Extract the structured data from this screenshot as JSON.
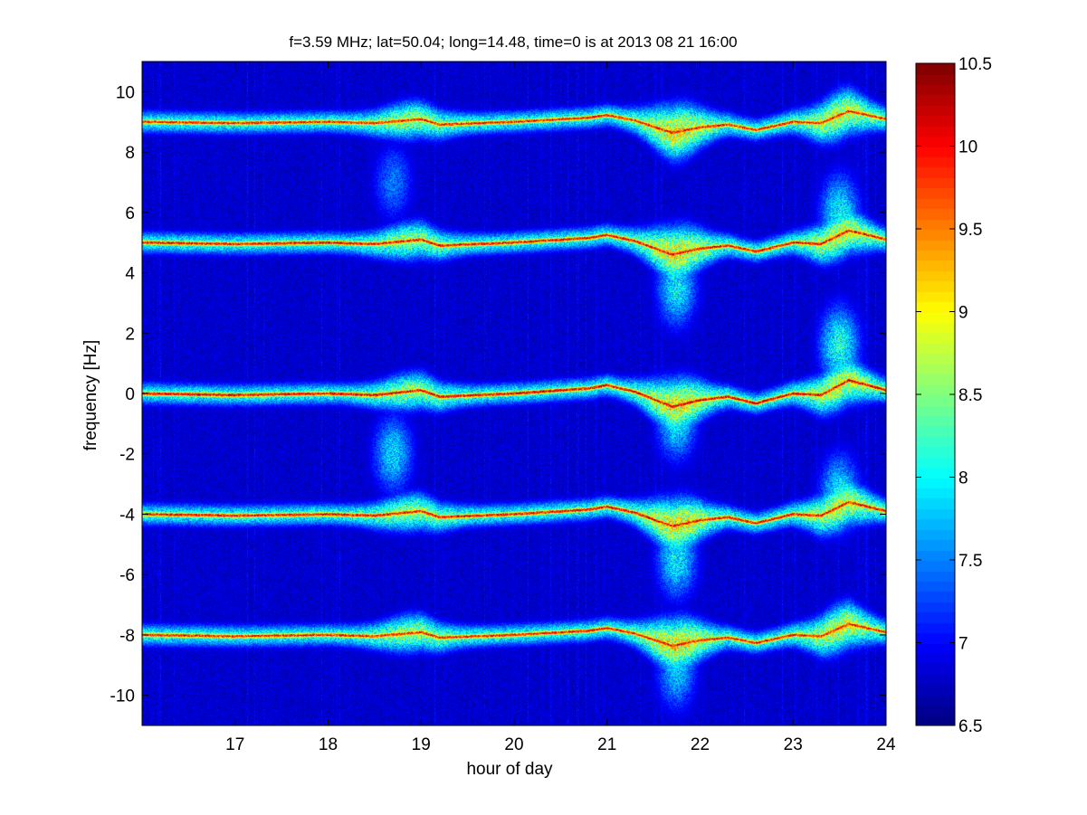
{
  "chart_data": {
    "type": "heatmap",
    "title": "f=3.59 MHz;  lat=50.04; long=14.48, time=0 is at 2013 08 21 16:00",
    "xlabel": "hour of day",
    "ylabel": "frequency [Hz]",
    "xlim": [
      16,
      24
    ],
    "ylim": [
      -11,
      11
    ],
    "xticks": [
      17,
      18,
      19,
      20,
      21,
      22,
      23,
      24
    ],
    "yticks": [
      -10,
      -8,
      -6,
      -4,
      -2,
      0,
      2,
      4,
      6,
      8,
      10
    ],
    "colormap": "jet",
    "clim": [
      6.5,
      10.5
    ],
    "colorbar_ticks": [
      6.5,
      7,
      7.5,
      8,
      8.5,
      9,
      9.5,
      10,
      10.5
    ],
    "background_level": 6.6,
    "bands": [
      {
        "center_hz": 9,
        "peak_level": 10.3,
        "drift_scale": 0.9
      },
      {
        "center_hz": 5,
        "peak_level": 10.4,
        "drift_scale": 1.0
      },
      {
        "center_hz": 0,
        "peak_level": 10.5,
        "drift_scale": 1.1
      },
      {
        "center_hz": -4,
        "peak_level": 10.4,
        "drift_scale": 1.0
      },
      {
        "center_hz": -8,
        "peak_level": 10.3,
        "drift_scale": 0.9
      }
    ],
    "band_drift": {
      "hours": [
        16.0,
        17.0,
        18.0,
        18.5,
        19.0,
        19.2,
        20.0,
        20.8,
        21.0,
        21.3,
        21.7,
        22.0,
        22.3,
        22.6,
        23.0,
        23.3,
        23.6,
        24.0
      ],
      "offset_hz": [
        0.0,
        -0.05,
        0.0,
        -0.05,
        0.1,
        -0.1,
        0.0,
        0.15,
        0.25,
        0.05,
        -0.4,
        -0.2,
        -0.1,
        -0.3,
        0.0,
        -0.05,
        0.4,
        0.1
      ]
    },
    "diffuse_regions": [
      {
        "hour": 18.7,
        "freq_hz": -2.0,
        "level": 7.9
      },
      {
        "hour": 18.7,
        "freq_hz": 7.0,
        "level": 7.5
      },
      {
        "hour": 21.75,
        "freq_hz": -0.9,
        "level": 8.0
      },
      {
        "hour": 21.75,
        "freq_hz": 3.5,
        "level": 8.0
      },
      {
        "hour": 21.75,
        "freq_hz": -5.5,
        "level": 8.0
      },
      {
        "hour": 21.75,
        "freq_hz": -9.2,
        "level": 7.8
      },
      {
        "hour": 23.5,
        "freq_hz": 1.6,
        "level": 8.2
      },
      {
        "hour": 23.5,
        "freq_hz": 6.0,
        "level": 8.0
      },
      {
        "hour": 23.5,
        "freq_hz": -3.3,
        "level": 8.0
      }
    ],
    "grid": false,
    "legend": "colorbar-right"
  }
}
